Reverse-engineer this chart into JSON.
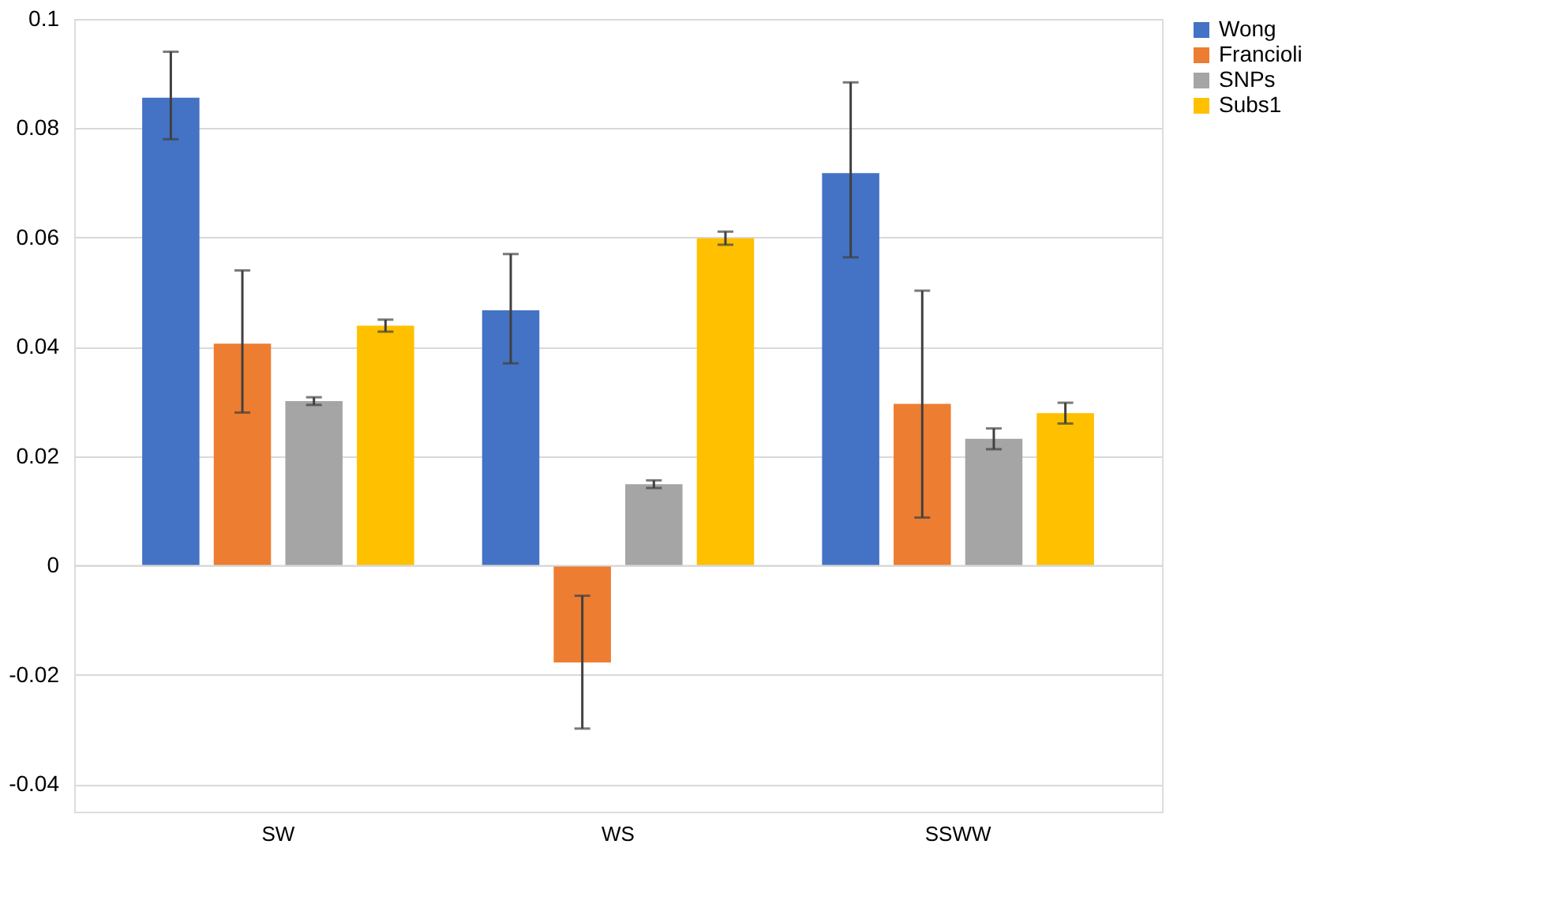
{
  "chart_data": {
    "type": "bar",
    "categories": [
      "SW",
      "WS",
      "SSWW"
    ],
    "series": [
      {
        "name": "Wong",
        "color": "#4472c4",
        "values": [
          0.0856,
          0.0467,
          0.0718
        ],
        "errors": [
          [
            0.078,
            0.094
          ],
          [
            0.037,
            0.057
          ],
          [
            0.0564,
            0.0884
          ]
        ]
      },
      {
        "name": "Francioli",
        "color": "#ed7d31",
        "values": [
          0.0406,
          -0.0177,
          0.0296
        ],
        "errors": [
          [
            0.028,
            0.054
          ],
          [
            -0.0298,
            -0.0055
          ],
          [
            0.0088,
            0.0503
          ]
        ]
      },
      {
        "name": "SNPs",
        "color": "#a5a5a5",
        "values": [
          0.0301,
          0.0149,
          0.0232
        ],
        "errors": [
          [
            0.0294,
            0.0308
          ],
          [
            0.0142,
            0.0156
          ],
          [
            0.0213,
            0.0251
          ]
        ]
      },
      {
        "name": "Subs1",
        "color": "#ffc000",
        "values": [
          0.0439,
          0.0599,
          0.0279
        ],
        "errors": [
          [
            0.0428,
            0.045
          ],
          [
            0.0587,
            0.0611
          ],
          [
            0.026,
            0.0298
          ]
        ]
      }
    ],
    "ylim": [
      -0.045,
      0.1
    ],
    "yticks": [
      -0.04,
      -0.02,
      0,
      0.02,
      0.04,
      0.06,
      0.08,
      0.1
    ],
    "grid": "y",
    "legend": "right"
  }
}
